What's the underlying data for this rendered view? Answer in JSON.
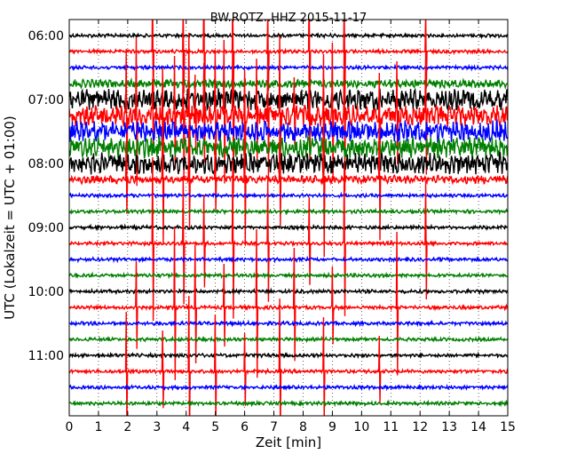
{
  "chart_data": {
    "type": "line",
    "title": "BW.ROTZ..HHZ 2015-11-17",
    "xlabel": "Zeit  [min]",
    "ylabel": "UTC (Lokalzeit = UTC + 01:00)",
    "xlim": [
      0,
      15
    ],
    "x_ticks": [
      "0",
      "1",
      "2",
      "3",
      "4",
      "5",
      "6",
      "7",
      "8",
      "9",
      "10",
      "11",
      "12",
      "13",
      "14",
      "15"
    ],
    "y_ticks": [
      "06:00",
      "07:00",
      "08:00",
      "09:00",
      "10:00",
      "11:00"
    ],
    "time_range": [
      "06:00",
      "12:00"
    ],
    "trace_interval_min": 15,
    "trace_colors": [
      "#000000",
      "#ff0000",
      "#0000ff",
      "#008000"
    ],
    "grid": "vertical dotted",
    "traces": [
      {
        "start": "06:00",
        "color": "black"
      },
      {
        "start": "06:15",
        "color": "red"
      },
      {
        "start": "06:30",
        "color": "blue"
      },
      {
        "start": "06:45",
        "color": "green"
      },
      {
        "start": "07:00",
        "color": "black"
      },
      {
        "start": "07:15",
        "color": "red"
      },
      {
        "start": "07:30",
        "color": "blue"
      },
      {
        "start": "07:45",
        "color": "green"
      },
      {
        "start": "08:00",
        "color": "black"
      },
      {
        "start": "08:15",
        "color": "red"
      },
      {
        "start": "08:30",
        "color": "blue"
      },
      {
        "start": "08:45",
        "color": "green"
      },
      {
        "start": "09:00",
        "color": "black"
      },
      {
        "start": "09:15",
        "color": "red"
      },
      {
        "start": "09:30",
        "color": "blue"
      },
      {
        "start": "09:45",
        "color": "green"
      },
      {
        "start": "10:00",
        "color": "black"
      },
      {
        "start": "10:15",
        "color": "red"
      },
      {
        "start": "10:30",
        "color": "blue"
      },
      {
        "start": "10:45",
        "color": "green"
      },
      {
        "start": "11:00",
        "color": "black"
      },
      {
        "start": "11:15",
        "color": "red"
      },
      {
        "start": "11:30",
        "color": "blue"
      },
      {
        "start": "11:45",
        "color": "green"
      }
    ]
  }
}
